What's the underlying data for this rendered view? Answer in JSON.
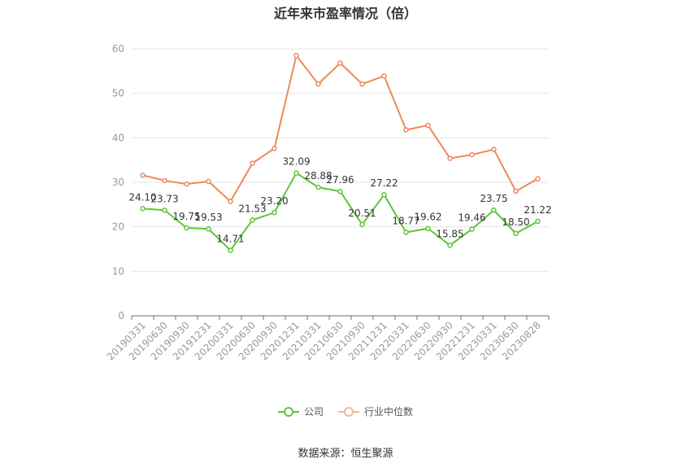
{
  "chart_data": {
    "type": "line",
    "title": "近年来市盈率情况（倍）",
    "source": "数据来源：恒生聚源",
    "categories": [
      "20190331",
      "20190630",
      "20190930",
      "20191231",
      "20200331",
      "20200630",
      "20200930",
      "20201231",
      "20210331",
      "20210630",
      "20210930",
      "20211231",
      "20220331",
      "20220630",
      "20220930",
      "20221231",
      "20230331",
      "20230630",
      "20230828"
    ],
    "ylim": [
      0,
      60
    ],
    "yticks": [
      0,
      10,
      20,
      30,
      40,
      50,
      60
    ],
    "ytick_labels": [
      "0",
      "10",
      "20",
      "30",
      "40",
      "50",
      "60"
    ],
    "grid": true,
    "legend_position": "bottom",
    "series": [
      {
        "name": "公司",
        "color": "#5cc639",
        "values": [
          24.1,
          23.73,
          19.75,
          19.53,
          14.71,
          21.53,
          23.2,
          32.09,
          28.88,
          27.96,
          20.51,
          27.22,
          18.77,
          19.62,
          15.85,
          19.46,
          23.75,
          18.5,
          21.22
        ],
        "labels": [
          "24.10",
          "23.73",
          "19.75",
          "19.53",
          "14.71",
          "21.53",
          "23.20",
          "32.09",
          "28.88",
          "27.96",
          "20.51",
          "27.22",
          "18.77",
          "19.62",
          "15.85",
          "19.46",
          "23.75",
          "18.50",
          "21.22"
        ]
      },
      {
        "name": "行业中位数",
        "color": "#f0885a",
        "values": [
          31.6,
          30.4,
          29.6,
          30.2,
          25.7,
          34.3,
          37.6,
          58.5,
          52.1,
          56.8,
          52.1,
          53.9,
          41.8,
          42.8,
          35.4,
          36.2,
          37.4,
          28.0,
          30.8
        ]
      }
    ]
  }
}
